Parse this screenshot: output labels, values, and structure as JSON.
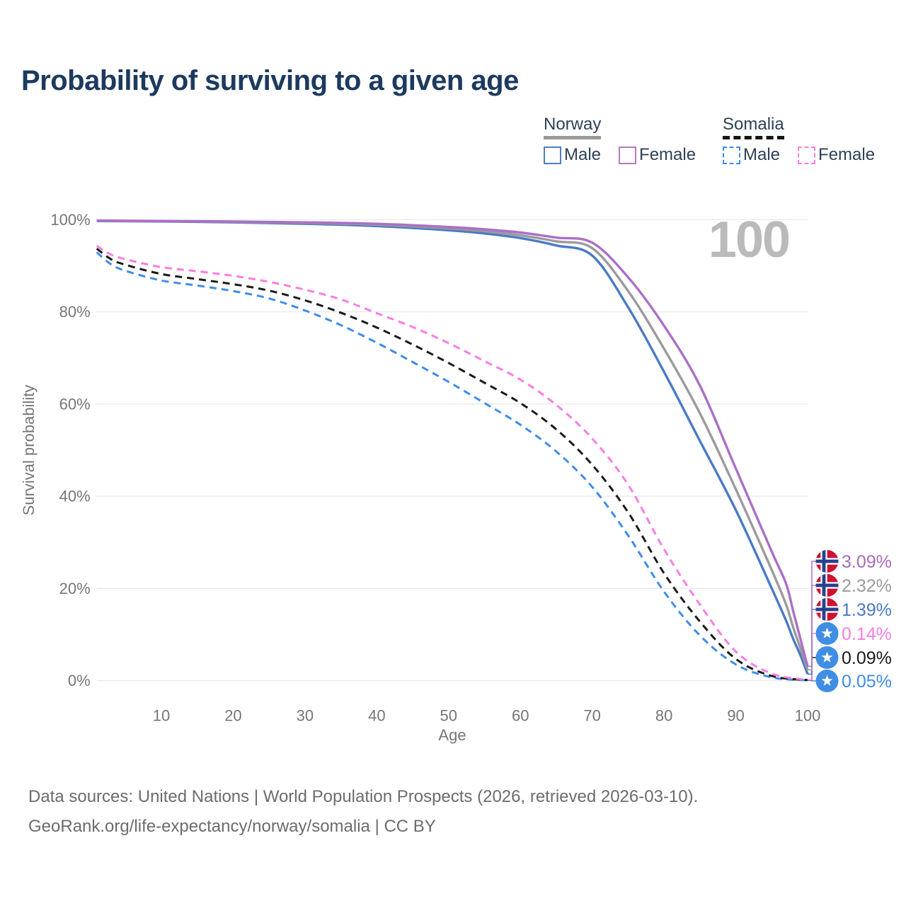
{
  "title": "Probability of surviving to a given age",
  "watermark": "100",
  "legend": {
    "groups": [
      {
        "label": "Norway",
        "line_style": "solid",
        "swatch_color": "#9a9a9a",
        "items": [
          {
            "label": "Male",
            "color": "#4f7ec5"
          },
          {
            "label": "Female",
            "color": "#b678c0"
          }
        ]
      },
      {
        "label": "Somalia",
        "line_style": "dashed",
        "swatch_color": "#141414",
        "items": [
          {
            "label": "Male",
            "color": "#3f8ceb"
          },
          {
            "label": "Female",
            "color": "#fa7de2"
          }
        ]
      }
    ]
  },
  "chart_data": {
    "type": "line",
    "title": "Probability of surviving to a given age",
    "xlabel": "Age",
    "ylabel": "Survival probability",
    "xlim": [
      1,
      100
    ],
    "ylim": [
      0,
      100
    ],
    "grid": "horizontal",
    "legend_position": "top-right",
    "x_ticks": [
      10,
      20,
      30,
      40,
      50,
      60,
      70,
      80,
      90,
      100
    ],
    "y_ticks": [
      {
        "value": 0,
        "label": "0%"
      },
      {
        "value": 20,
        "label": "20%"
      },
      {
        "value": 40,
        "label": "40%"
      },
      {
        "value": 60,
        "label": "60%"
      },
      {
        "value": 80,
        "label": "80%"
      },
      {
        "value": 100,
        "label": "100%"
      }
    ],
    "series": [
      {
        "id": "somalia-male",
        "name": "Somalia Male",
        "country": "Somalia",
        "sex": "Male",
        "color": "#3f8ceb",
        "dashed": true,
        "flag": "somalia",
        "end_label": "0.05%",
        "label_color": "#3f8ceb",
        "label_row": 5,
        "points": [
          [
            1,
            92.9
          ],
          [
            3,
            90.3
          ],
          [
            5,
            88.9
          ],
          [
            10,
            86.8
          ],
          [
            15,
            85.7
          ],
          [
            20,
            84.5
          ],
          [
            25,
            82.9
          ],
          [
            30,
            80.3
          ],
          [
            35,
            77.1
          ],
          [
            40,
            73.3
          ],
          [
            45,
            69.1
          ],
          [
            50,
            64.8
          ],
          [
            55,
            60.2
          ],
          [
            60,
            55.5
          ],
          [
            65,
            49.7
          ],
          [
            70,
            42.0
          ],
          [
            75,
            31.5
          ],
          [
            80,
            19.3
          ],
          [
            85,
            9.8
          ],
          [
            90,
            3.5
          ],
          [
            95,
            0.7
          ],
          [
            100,
            0.05
          ]
        ]
      },
      {
        "id": "somalia-all",
        "name": "Somalia",
        "country": "Somalia",
        "sex": "Both sexes",
        "color": "#1a1a1a",
        "dashed": true,
        "flag": "somalia",
        "end_label": "0.09%",
        "label_color": "#1a1a1a",
        "label_row": 4,
        "points": [
          [
            1,
            93.7
          ],
          [
            3,
            91.4
          ],
          [
            5,
            90.2
          ],
          [
            10,
            88.2
          ],
          [
            15,
            87.1
          ],
          [
            20,
            86.0
          ],
          [
            25,
            84.6
          ],
          [
            30,
            82.5
          ],
          [
            35,
            79.8
          ],
          [
            40,
            76.6
          ],
          [
            45,
            72.9
          ],
          [
            50,
            68.9
          ],
          [
            55,
            64.6
          ],
          [
            60,
            60.2
          ],
          [
            65,
            54.5
          ],
          [
            70,
            46.8
          ],
          [
            75,
            36.5
          ],
          [
            80,
            23.3
          ],
          [
            85,
            12.8
          ],
          [
            90,
            4.7
          ],
          [
            95,
            1.0
          ],
          [
            100,
            0.09
          ]
        ]
      },
      {
        "id": "somalia-female",
        "name": "Somalia Female",
        "country": "Somalia",
        "sex": "Female",
        "color": "#fa7de2",
        "dashed": true,
        "flag": "somalia",
        "end_label": "0.14%",
        "label_color": "#fa7de2",
        "label_row": 3,
        "points": [
          [
            1,
            94.3
          ],
          [
            3,
            92.4
          ],
          [
            5,
            91.4
          ],
          [
            10,
            89.7
          ],
          [
            15,
            88.8
          ],
          [
            20,
            87.8
          ],
          [
            25,
            86.5
          ],
          [
            30,
            84.8
          ],
          [
            35,
            82.7
          ],
          [
            40,
            79.7
          ],
          [
            45,
            76.7
          ],
          [
            50,
            73.2
          ],
          [
            55,
            69.3
          ],
          [
            60,
            65.3
          ],
          [
            65,
            59.8
          ],
          [
            70,
            52.5
          ],
          [
            75,
            42.5
          ],
          [
            80,
            28.5
          ],
          [
            85,
            16.5
          ],
          [
            90,
            6.3
          ],
          [
            95,
            1.5
          ],
          [
            100,
            0.14
          ]
        ]
      },
      {
        "id": "norway-male",
        "name": "Norway Male",
        "country": "Norway",
        "sex": "Male",
        "color": "#4a7ac6",
        "dashed": false,
        "flag": "norway",
        "end_label": "1.39%",
        "label_color": "#4a7ac6",
        "label_row": 2,
        "points": [
          [
            1,
            99.7
          ],
          [
            10,
            99.6
          ],
          [
            20,
            99.4
          ],
          [
            30,
            99.1
          ],
          [
            40,
            98.6
          ],
          [
            50,
            97.7
          ],
          [
            55,
            97.0
          ],
          [
            60,
            96.0
          ],
          [
            65,
            94.4
          ],
          [
            70,
            92.2
          ],
          [
            75,
            81.0
          ],
          [
            80,
            67.0
          ],
          [
            85,
            52.0
          ],
          [
            90,
            37.0
          ],
          [
            95,
            20.0
          ],
          [
            97,
            13.0
          ],
          [
            98,
            9.0
          ],
          [
            99,
            5.5
          ],
          [
            100,
            1.39
          ]
        ]
      },
      {
        "id": "norway-all",
        "name": "Norway",
        "country": "Norway",
        "sex": "Both sexes",
        "color": "#9b9b9b",
        "dashed": false,
        "flag": "norway",
        "end_label": "2.32%",
        "label_color": "#9b9b9b",
        "label_row": 1,
        "points": [
          [
            1,
            99.75
          ],
          [
            10,
            99.65
          ],
          [
            20,
            99.5
          ],
          [
            30,
            99.3
          ],
          [
            40,
            98.9
          ],
          [
            50,
            98.1
          ],
          [
            55,
            97.5
          ],
          [
            60,
            96.6
          ],
          [
            65,
            95.3
          ],
          [
            70,
            93.8
          ],
          [
            75,
            84.5
          ],
          [
            80,
            72.0
          ],
          [
            85,
            58.0
          ],
          [
            90,
            41.5
          ],
          [
            95,
            24.0
          ],
          [
            97,
            16.5
          ],
          [
            98,
            11.5
          ],
          [
            99,
            7.0
          ],
          [
            100,
            2.32
          ]
        ]
      },
      {
        "id": "norway-female",
        "name": "Norway Female",
        "country": "Norway",
        "sex": "Female",
        "color": "#ab6fc6",
        "dashed": false,
        "flag": "norway",
        "end_label": "3.09%",
        "label_color": "#a76cb8",
        "label_row": 0,
        "points": [
          [
            1,
            99.8
          ],
          [
            10,
            99.7
          ],
          [
            20,
            99.6
          ],
          [
            30,
            99.4
          ],
          [
            40,
            99.1
          ],
          [
            50,
            98.4
          ],
          [
            55,
            97.9
          ],
          [
            60,
            97.2
          ],
          [
            65,
            96.1
          ],
          [
            70,
            95.0
          ],
          [
            75,
            87.5
          ],
          [
            80,
            77.0
          ],
          [
            85,
            64.0
          ],
          [
            90,
            46.0
          ],
          [
            95,
            28.0
          ],
          [
            97,
            21.0
          ],
          [
            98,
            15.0
          ],
          [
            99,
            9.0
          ],
          [
            100,
            3.09
          ]
        ]
      }
    ]
  },
  "footer": {
    "line1": "Data sources: United Nations | World Population Prospects (2026, retrieved 2026-03-10).",
    "line2": "GeoRank.org/life-expectancy/norway/somalia | CC BY"
  }
}
